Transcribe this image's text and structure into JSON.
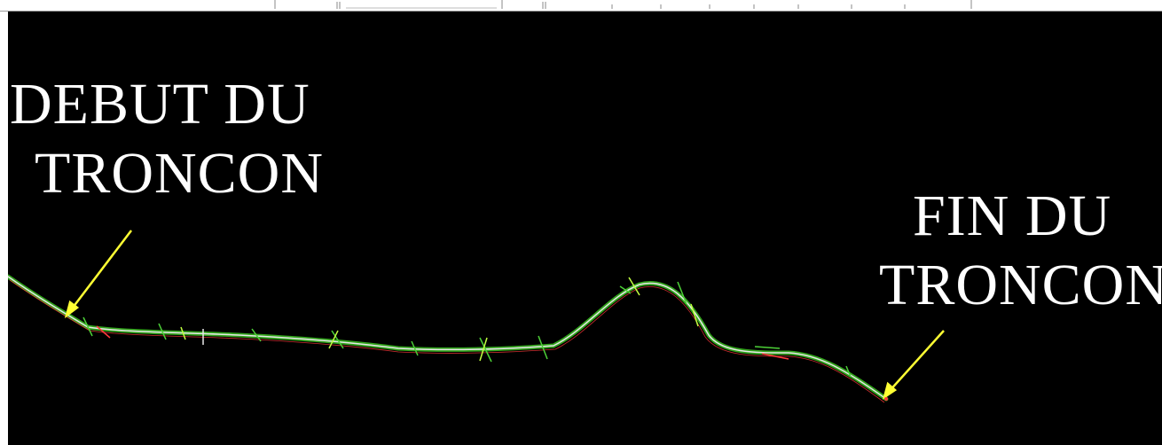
{
  "canvas": {
    "background_color": "#000000",
    "arrow_color": "#ffff33",
    "road_colors": [
      "#e8e8e8",
      "#4cd137",
      "#ff3b3b",
      "#c0ff40"
    ]
  },
  "labels": {
    "start_line1": "DEBUT DU",
    "start_line2": "TRONCON",
    "end_line1": "FIN DU",
    "end_line2": "TRONCON"
  }
}
